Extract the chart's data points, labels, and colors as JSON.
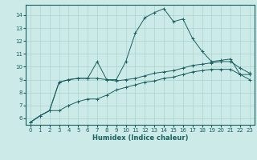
{
  "xlabel": "Humidex (Indice chaleur)",
  "bg_color": "#cceae8",
  "grid_color": "#aad4d0",
  "line_color": "#1a6060",
  "xlim": [
    -0.5,
    23.5
  ],
  "ylim": [
    5.5,
    14.8
  ],
  "yticks": [
    6,
    7,
    8,
    9,
    10,
    11,
    12,
    13,
    14
  ],
  "xticks": [
    0,
    1,
    2,
    3,
    4,
    5,
    6,
    7,
    8,
    9,
    10,
    11,
    12,
    13,
    14,
    15,
    16,
    17,
    18,
    19,
    20,
    21,
    22,
    23
  ],
  "line1_x": [
    0,
    1,
    2,
    3,
    4,
    5,
    6,
    7,
    8,
    9,
    10,
    11,
    12,
    13,
    14,
    15,
    16,
    17,
    18,
    19,
    20,
    21,
    22,
    23
  ],
  "line1_y": [
    5.7,
    6.2,
    6.6,
    8.8,
    9.0,
    9.1,
    9.1,
    9.1,
    9.0,
    8.9,
    9.0,
    9.1,
    9.3,
    9.5,
    9.6,
    9.7,
    9.9,
    10.1,
    10.2,
    10.3,
    10.4,
    10.4,
    9.9,
    9.5
  ],
  "line2_x": [
    0,
    1,
    2,
    3,
    4,
    5,
    6,
    7,
    8,
    9,
    10,
    11,
    12,
    13,
    14,
    15,
    16,
    17,
    18,
    19,
    20,
    21,
    22,
    23
  ],
  "line2_y": [
    5.7,
    6.2,
    6.6,
    6.6,
    7.0,
    7.3,
    7.5,
    7.5,
    7.8,
    8.2,
    8.4,
    8.6,
    8.8,
    8.9,
    9.1,
    9.2,
    9.4,
    9.6,
    9.7,
    9.8,
    9.8,
    9.8,
    9.4,
    9.0
  ],
  "line3_x": [
    0,
    1,
    2,
    3,
    4,
    5,
    6,
    7,
    8,
    9,
    10,
    11,
    12,
    13,
    14,
    15,
    16,
    17,
    18,
    19,
    20,
    21,
    22,
    23
  ],
  "line3_y": [
    5.7,
    6.2,
    6.6,
    8.8,
    9.0,
    9.1,
    9.1,
    10.4,
    9.0,
    9.0,
    10.4,
    12.6,
    13.8,
    14.2,
    14.5,
    13.5,
    13.7,
    12.2,
    11.2,
    10.4,
    10.5,
    10.6,
    9.4,
    9.4
  ]
}
